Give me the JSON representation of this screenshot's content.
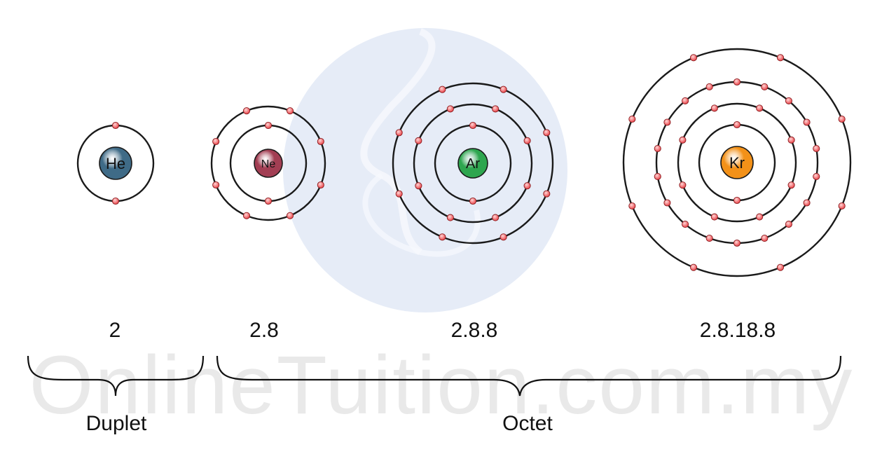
{
  "watermark_text": "OnlineTuition.com.my",
  "atoms": [
    {
      "symbol": "He",
      "configuration": "2",
      "shells": [
        2
      ],
      "nucleus_color": "#3f6b87"
    },
    {
      "symbol": "Ne",
      "configuration": "2.8",
      "shells": [
        2,
        8
      ],
      "nucleus_color": "#a23e53"
    },
    {
      "symbol": "Ar",
      "configuration": "2.8.8",
      "shells": [
        2,
        8,
        8
      ],
      "nucleus_color": "#2ea64f"
    },
    {
      "symbol": "Kr",
      "configuration": "2.8.18.8",
      "shells": [
        2,
        8,
        18,
        8
      ],
      "nucleus_color": "#f39118"
    }
  ],
  "groups": [
    {
      "label": "Duplet"
    },
    {
      "label": "Octet"
    }
  ],
  "colors": {
    "electron": "#e8363c",
    "shell": "#1a1a1a",
    "watermark_globe": "#e6ecf7"
  }
}
